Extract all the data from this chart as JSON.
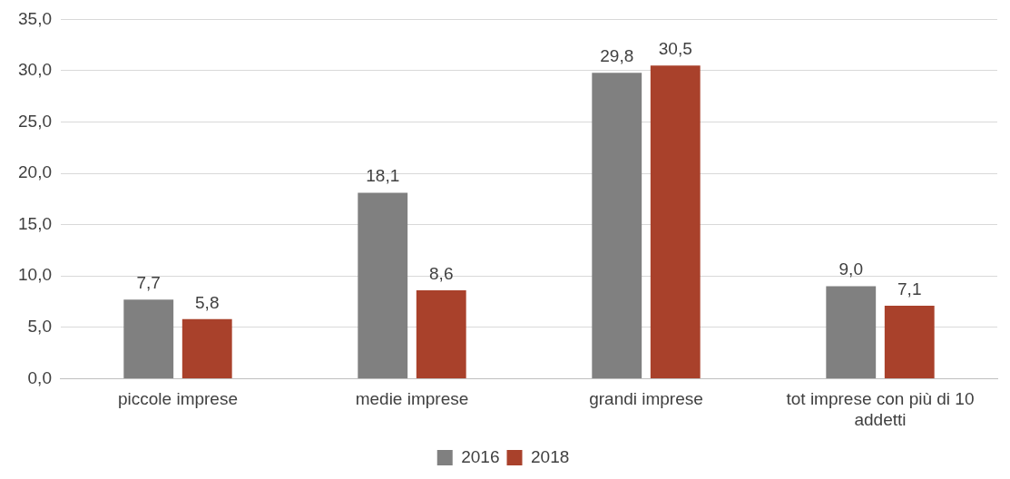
{
  "chart_data": {
    "type": "bar",
    "categories": [
      "piccole imprese",
      "medie imprese",
      "grandi imprese",
      "tot imprese con più di 10 addetti"
    ],
    "series": [
      {
        "name": "2016",
        "color": "#808080",
        "values": [
          7.7,
          18.1,
          29.8,
          9.0
        ],
        "value_labels": [
          "7,7",
          "18,1",
          "29,8",
          "9,0"
        ]
      },
      {
        "name": "2018",
        "color": "#a9412b",
        "values": [
          5.8,
          8.6,
          30.5,
          7.1
        ],
        "value_labels": [
          "5,8",
          "8,6",
          "30,5",
          "7,1"
        ]
      }
    ],
    "ylim": [
      0,
      35
    ],
    "yticks": [
      {
        "value": 0,
        "label": "0,0"
      },
      {
        "value": 5,
        "label": "5,0"
      },
      {
        "value": 10,
        "label": "10,0"
      },
      {
        "value": 15,
        "label": "15,0"
      },
      {
        "value": 20,
        "label": "20,0"
      },
      {
        "value": 25,
        "label": "25,0"
      },
      {
        "value": 30,
        "label": "30,0"
      },
      {
        "value": 35,
        "label": "35,0"
      }
    ],
    "grid": "y",
    "legend": "bottom"
  }
}
